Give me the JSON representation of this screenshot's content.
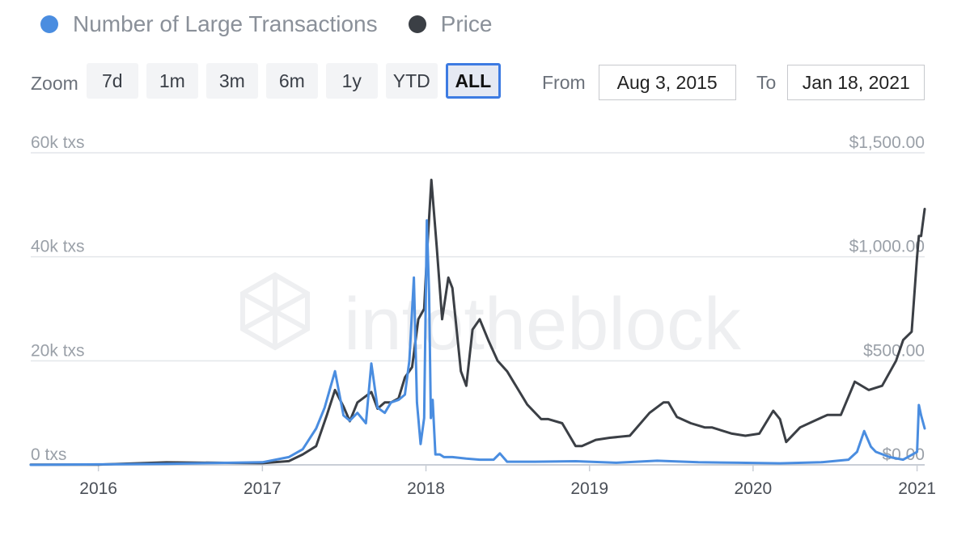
{
  "legend": {
    "series1": {
      "label": "Number of Large Transactions",
      "color": "#4a8de0"
    },
    "series2": {
      "label": "Price",
      "color": "#3b3f45"
    }
  },
  "zoom": {
    "label": "Zoom",
    "buttons": [
      "7d",
      "1m",
      "3m",
      "6m",
      "1y",
      "YTD",
      "ALL"
    ],
    "active": "ALL"
  },
  "range": {
    "from_label": "From",
    "from_value": "Aug 3, 2015",
    "to_label": "To",
    "to_value": "Jan 18, 2021"
  },
  "watermark": "intotheblock",
  "chart_data": {
    "type": "line",
    "x_range": [
      "2015-08-03",
      "2021-01-18"
    ],
    "x_ticks": [
      "2016",
      "2017",
      "2018",
      "2019",
      "2020",
      "2021"
    ],
    "y_left": {
      "ticks": [
        "0 txs",
        "20k txs",
        "40k txs",
        "60k txs"
      ],
      "range": [
        0,
        60000
      ]
    },
    "y_right": {
      "ticks": [
        "$0.00",
        "$500.00",
        "$1,000.00",
        "$1,500.00"
      ],
      "range": [
        0,
        1500
      ]
    },
    "grid": true,
    "legend_position": "top-left",
    "series": [
      {
        "name": "Number of Large Transactions",
        "axis": "left",
        "color": "#4a8de0",
        "x": [
          "2015-08-03",
          "2016-01-01",
          "2016-06-01",
          "2017-01-01",
          "2017-03-01",
          "2017-04-01",
          "2017-05-01",
          "2017-05-20",
          "2017-06-12",
          "2017-07-01",
          "2017-07-15",
          "2017-08-01",
          "2017-08-20",
          "2017-09-01",
          "2017-09-15",
          "2017-10-01",
          "2017-10-15",
          "2017-11-01",
          "2017-11-15",
          "2017-11-25",
          "2017-12-05",
          "2017-12-12",
          "2017-12-20",
          "2017-12-28",
          "2018-01-03",
          "2018-01-08",
          "2018-01-12",
          "2018-01-16",
          "2018-01-22",
          "2018-02-01",
          "2018-02-10",
          "2018-03-01",
          "2018-04-01",
          "2018-05-01",
          "2018-06-01",
          "2018-06-15",
          "2018-07-01",
          "2018-09-01",
          "2018-12-01",
          "2019-03-01",
          "2019-06-01",
          "2019-09-01",
          "2019-12-01",
          "2020-03-01",
          "2020-06-01",
          "2020-08-01",
          "2020-08-20",
          "2020-09-05",
          "2020-09-20",
          "2020-10-01",
          "2020-11-01",
          "2020-12-01",
          "2021-01-01",
          "2021-01-05",
          "2021-01-10",
          "2021-01-18"
        ],
        "values": [
          0,
          100,
          200,
          500,
          1500,
          3000,
          7000,
          11000,
          18000,
          9500,
          8500,
          10000,
          8000,
          19500,
          11000,
          10000,
          12000,
          12500,
          13500,
          20000,
          36000,
          12000,
          4000,
          9000,
          47000,
          33000,
          9000,
          12500,
          2000,
          2000,
          1500,
          1500,
          1200,
          1000,
          1000,
          2200,
          600,
          600,
          700,
          400,
          800,
          500,
          400,
          300,
          500,
          1000,
          2500,
          6500,
          3500,
          2500,
          1500,
          1000,
          2500,
          11500,
          9500,
          7000
        ]
      },
      {
        "name": "Price",
        "axis": "right",
        "color": "#3b3f45",
        "x": [
          "2015-08-03",
          "2016-01-01",
          "2016-06-01",
          "2017-01-01",
          "2017-03-01",
          "2017-04-01",
          "2017-05-01",
          "2017-05-25",
          "2017-06-12",
          "2017-07-01",
          "2017-07-15",
          "2017-08-01",
          "2017-09-01",
          "2017-09-15",
          "2017-10-01",
          "2017-10-15",
          "2017-11-01",
          "2017-11-15",
          "2017-12-01",
          "2017-12-15",
          "2017-12-28",
          "2018-01-03",
          "2018-01-13",
          "2018-01-25",
          "2018-02-06",
          "2018-02-20",
          "2018-03-01",
          "2018-03-20",
          "2018-04-01",
          "2018-04-15",
          "2018-05-01",
          "2018-05-20",
          "2018-06-10",
          "2018-07-01",
          "2018-08-15",
          "2018-09-15",
          "2018-10-01",
          "2018-11-01",
          "2018-12-01",
          "2018-12-15",
          "2019-01-15",
          "2019-02-15",
          "2019-04-01",
          "2019-05-15",
          "2019-06-15",
          "2019-06-26",
          "2019-07-15",
          "2019-08-15",
          "2019-09-15",
          "2019-10-01",
          "2019-11-15",
          "2019-12-15",
          "2020-01-15",
          "2020-02-15",
          "2020-03-01",
          "2020-03-15",
          "2020-04-15",
          "2020-05-15",
          "2020-06-15",
          "2020-07-15",
          "2020-08-15",
          "2020-09-15",
          "2020-10-15",
          "2020-11-15",
          "2020-12-01",
          "2020-12-20",
          "2021-01-01",
          "2021-01-05",
          "2021-01-10",
          "2021-01-18"
        ],
        "values": [
          1,
          1,
          12,
          8,
          18,
          50,
          90,
          240,
          360,
          280,
          210,
          300,
          350,
          270,
          300,
          300,
          320,
          420,
          470,
          700,
          750,
          1000,
          1370,
          1050,
          700,
          900,
          850,
          450,
          380,
          650,
          700,
          600,
          500,
          450,
          290,
          220,
          220,
          200,
          90,
          90,
          120,
          130,
          140,
          250,
          300,
          300,
          230,
          200,
          180,
          180,
          150,
          140,
          150,
          260,
          220,
          110,
          180,
          210,
          240,
          240,
          400,
          360,
          380,
          500,
          600,
          640,
          1000,
          1100,
          1100,
          1230
        ]
      }
    ]
  }
}
